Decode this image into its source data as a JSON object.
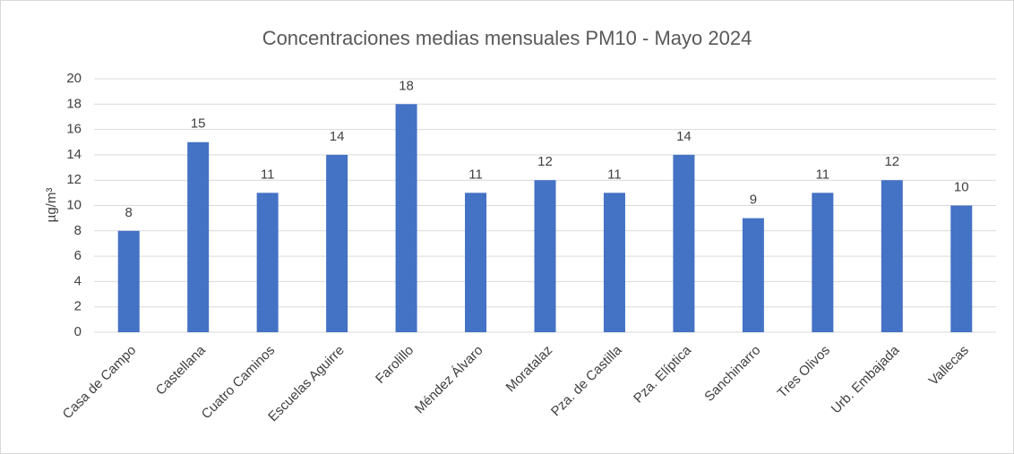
{
  "chart_data": {
    "type": "bar",
    "title": "Concentraciones medias mensuales PM10 - Mayo 2024",
    "y_label": "µg/m³",
    "categories": [
      "Casa de Campo",
      "Castellana",
      "Cuatro Caminos",
      "Escuelas Aguirre",
      "Farolillo",
      "Méndez Álvaro",
      "Moratalaz",
      "Pza. de Castilla",
      "Pza. Elíptica",
      "Sanchinarro",
      "Tres Olivos",
      "Urb. Embajada",
      "Vallecas"
    ],
    "values": [
      8,
      15,
      11,
      14,
      18,
      11,
      12,
      11,
      14,
      9,
      11,
      12,
      10
    ],
    "color": "#4472c4",
    "ylim": [
      0,
      20
    ],
    "yticks": [
      0,
      2,
      4,
      6,
      8,
      10,
      12,
      14,
      16,
      18,
      20
    ],
    "grid": true
  }
}
